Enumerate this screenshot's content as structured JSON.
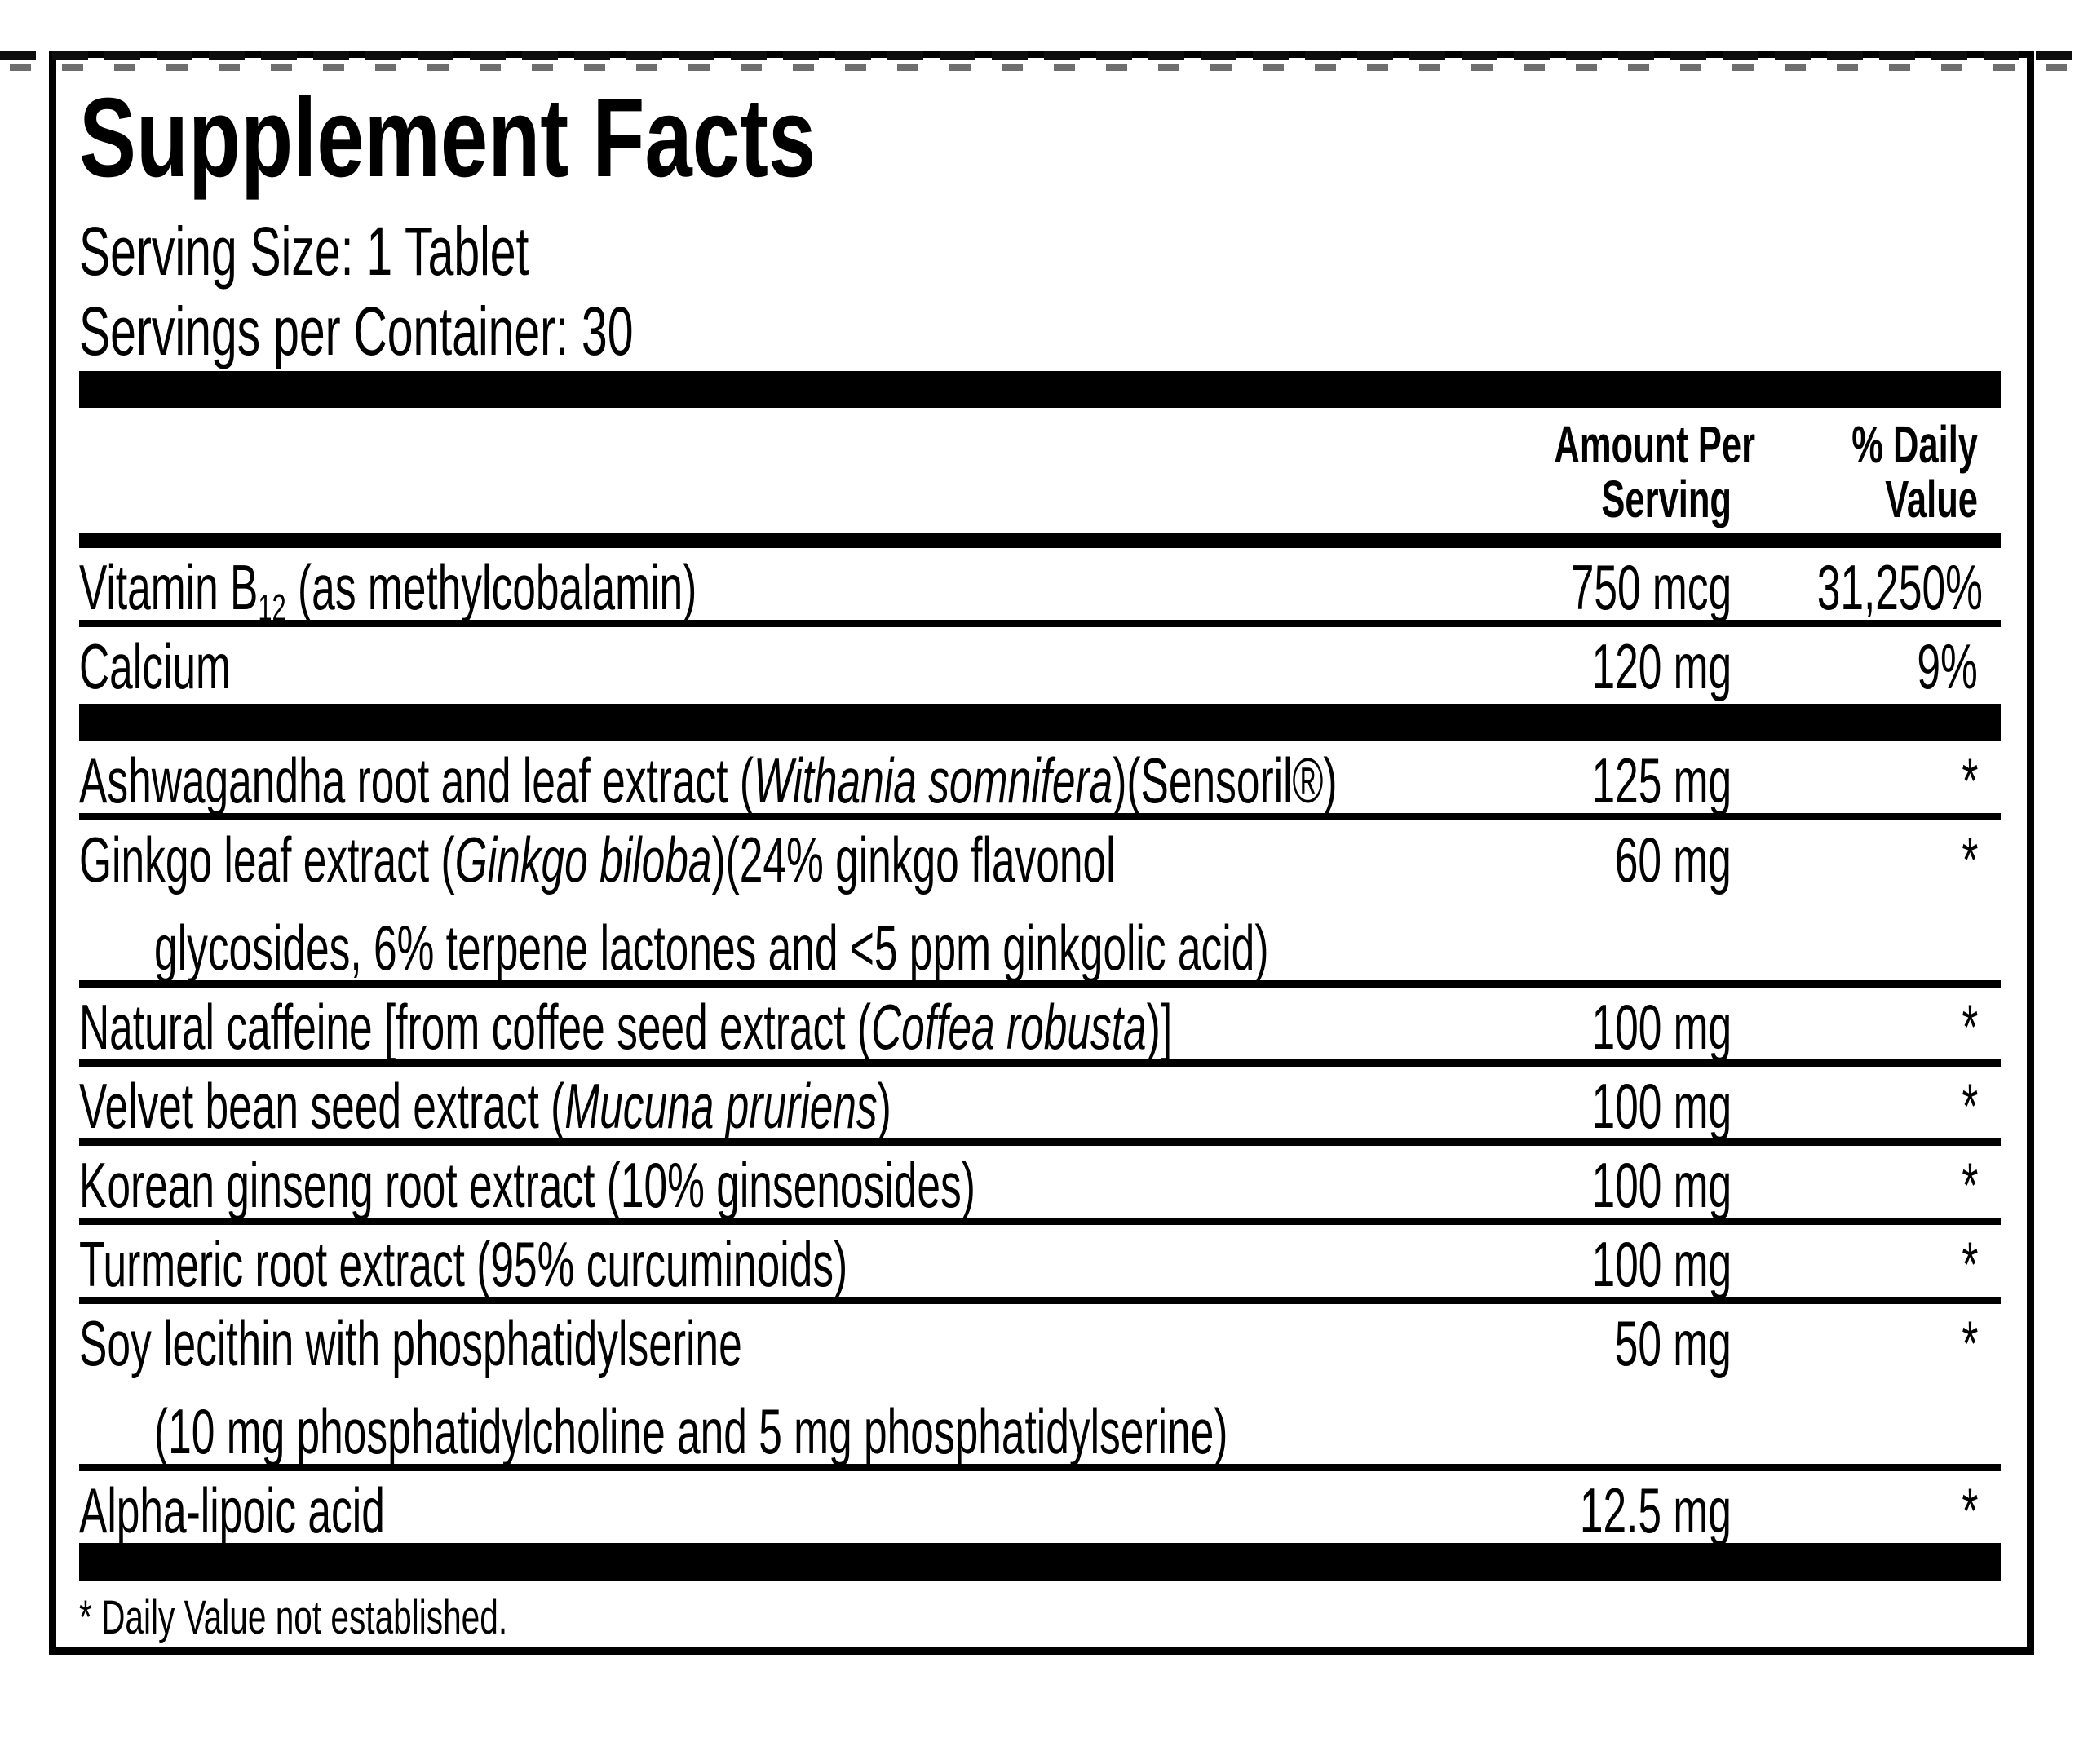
{
  "colors": {
    "text": "#000000",
    "background": "#ffffff",
    "rule_bars": "#000000"
  },
  "label": {
    "title": "Supplement Facts",
    "serving_size": "Serving Size: 1 Tablet",
    "servings_per_container": "Servings per Container: 30",
    "header": {
      "amount_col": {
        "line1": "Amount Per",
        "line2": "Serving"
      },
      "dv_col": {
        "line1": "% Daily",
        "line2": "Value"
      }
    },
    "rows": [
      {
        "name": [
          {
            "text": "Vitamin B"
          },
          {
            "text": "12",
            "style": "sub"
          },
          {
            "text": " (as methylcobalamin)"
          }
        ],
        "amount": "750 mcg",
        "dv": "31,250%",
        "after": "thin"
      },
      {
        "name": [
          {
            "text": "Calcium"
          }
        ],
        "amount": "120 mg",
        "dv": "9%",
        "after": "thick"
      },
      {
        "name": [
          {
            "text": "Ashwagandha root and leaf extract ("
          },
          {
            "text": "Withania somnifera",
            "style": "italic"
          },
          {
            "text": ")(Sensoril®)"
          }
        ],
        "amount": "125 mg",
        "dv": "*",
        "after": "thin"
      },
      {
        "name": [
          {
            "text": "Ginkgo leaf extract ("
          },
          {
            "text": "Ginkgo biloba",
            "style": "italic"
          },
          {
            "text": ")(24% ginkgo flavonol"
          }
        ],
        "name_line2": "glycosides, 6% terpene lactones and <5 ppm ginkgolic acid)",
        "amount": "60 mg",
        "dv": "*",
        "after": "thin"
      },
      {
        "name": [
          {
            "text": "Natural caffeine [from coffee seed extract ("
          },
          {
            "text": "Coffea robusta",
            "style": "italic"
          },
          {
            "text": ")]"
          }
        ],
        "amount": "100 mg",
        "dv": "*",
        "after": "thin"
      },
      {
        "name": [
          {
            "text": "Velvet bean seed extract ("
          },
          {
            "text": "Mucuna pruriens",
            "style": "italic"
          },
          {
            "text": ")"
          }
        ],
        "amount": "100 mg",
        "dv": "*",
        "after": "thin"
      },
      {
        "name": [
          {
            "text": "Korean ginseng root extract (10% ginsenosides)"
          }
        ],
        "amount": "100 mg",
        "dv": "*",
        "after": "thin"
      },
      {
        "name": [
          {
            "text": "Turmeric root extract (95% curcuminoids)"
          }
        ],
        "amount": "100 mg",
        "dv": "*",
        "after": "thin"
      },
      {
        "name": [
          {
            "text": "Soy lecithin with phosphatidylserine"
          }
        ],
        "name_line2": "(10 mg phosphatidylcholine and 5 mg phosphatidylserine)",
        "amount": "50 mg",
        "dv": "*",
        "after": "thin"
      },
      {
        "name": [
          {
            "text": "Alpha-lipoic acid"
          }
        ],
        "amount": "12.5 mg",
        "dv": "*",
        "after": "none"
      }
    ],
    "footnote": "* Daily Value not established."
  }
}
